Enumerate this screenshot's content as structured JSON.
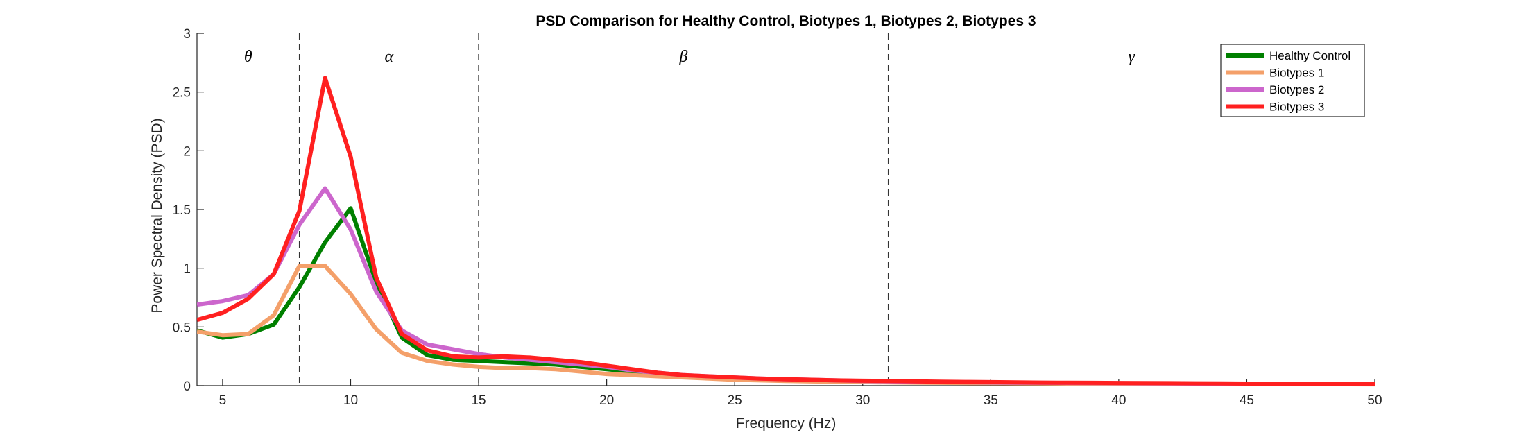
{
  "chart_data": {
    "type": "line",
    "title": "PSD Comparison for Healthy Control, Biotypes 1, Biotypes 2, Biotypes 3",
    "xlabel": "Frequency (Hz)",
    "ylabel": "Power Spectral Density (PSD)",
    "xlim": [
      4,
      50
    ],
    "ylim": [
      0,
      3
    ],
    "xticks": [
      5,
      10,
      15,
      20,
      25,
      30,
      35,
      40,
      45,
      50
    ],
    "yticks": [
      0,
      0.5,
      1,
      1.5,
      2,
      2.5,
      3
    ],
    "grid": false,
    "legend_position": "top-right",
    "band_boundaries": [
      8,
      15,
      31
    ],
    "bands": [
      {
        "label": "θ",
        "x": 6
      },
      {
        "label": "α",
        "x": 11.5
      },
      {
        "label": "β",
        "x": 23
      },
      {
        "label": "γ",
        "x": 40.5
      }
    ],
    "x": [
      4,
      5,
      6,
      7,
      8,
      9,
      10,
      11,
      12,
      13,
      14,
      15,
      16,
      17,
      18,
      19,
      20,
      21,
      22,
      23,
      24,
      25,
      26,
      27,
      28,
      29,
      30,
      31,
      32,
      33,
      34,
      35,
      36,
      37,
      38,
      39,
      40,
      41,
      42,
      43,
      44,
      45,
      46,
      47,
      48,
      49,
      50
    ],
    "series": [
      {
        "name": "Healthy Control",
        "color": "#008000",
        "values": [
          0.47,
          0.41,
          0.44,
          0.52,
          0.84,
          1.22,
          1.51,
          0.88,
          0.41,
          0.26,
          0.22,
          0.21,
          0.2,
          0.19,
          0.18,
          0.16,
          0.14,
          0.12,
          0.1,
          0.08,
          0.07,
          0.06,
          0.055,
          0.05,
          0.045,
          0.04,
          0.037,
          0.034,
          0.031,
          0.029,
          0.027,
          0.025,
          0.024,
          0.023,
          0.022,
          0.021,
          0.02,
          0.019,
          0.018,
          0.017,
          0.016,
          0.015,
          0.014,
          0.014,
          0.013,
          0.013,
          0.012
        ]
      },
      {
        "name": "Biotypes 1",
        "color": "#F4A06A",
        "values": [
          0.46,
          0.43,
          0.44,
          0.6,
          1.02,
          1.02,
          0.78,
          0.48,
          0.28,
          0.21,
          0.18,
          0.16,
          0.15,
          0.15,
          0.14,
          0.12,
          0.1,
          0.09,
          0.08,
          0.07,
          0.06,
          0.05,
          0.045,
          0.04,
          0.036,
          0.033,
          0.03,
          0.028,
          0.026,
          0.024,
          0.022,
          0.021,
          0.02,
          0.019,
          0.018,
          0.017,
          0.016,
          0.016,
          0.015,
          0.015,
          0.014,
          0.014,
          0.013,
          0.013,
          0.012,
          0.012,
          0.011
        ]
      },
      {
        "name": "Biotypes 2",
        "color": "#CC66CC",
        "values": [
          0.69,
          0.72,
          0.77,
          0.95,
          1.37,
          1.68,
          1.33,
          0.8,
          0.47,
          0.35,
          0.31,
          0.27,
          0.24,
          0.22,
          0.2,
          0.18,
          0.16,
          0.13,
          0.11,
          0.09,
          0.08,
          0.07,
          0.06,
          0.055,
          0.05,
          0.045,
          0.04,
          0.037,
          0.034,
          0.031,
          0.029,
          0.027,
          0.025,
          0.024,
          0.023,
          0.022,
          0.021,
          0.02,
          0.019,
          0.018,
          0.017,
          0.016,
          0.016,
          0.015,
          0.015,
          0.014,
          0.014
        ]
      },
      {
        "name": "Biotypes 3",
        "color": "#FF2020",
        "values": [
          0.56,
          0.62,
          0.74,
          0.95,
          1.49,
          2.62,
          1.95,
          0.92,
          0.44,
          0.3,
          0.25,
          0.24,
          0.25,
          0.24,
          0.22,
          0.2,
          0.17,
          0.14,
          0.11,
          0.09,
          0.08,
          0.07,
          0.06,
          0.055,
          0.05,
          0.045,
          0.042,
          0.04,
          0.037,
          0.034,
          0.032,
          0.03,
          0.028,
          0.026,
          0.025,
          0.024,
          0.023,
          0.022,
          0.021,
          0.02,
          0.019,
          0.018,
          0.018,
          0.017,
          0.017,
          0.016,
          0.016
        ]
      }
    ]
  }
}
